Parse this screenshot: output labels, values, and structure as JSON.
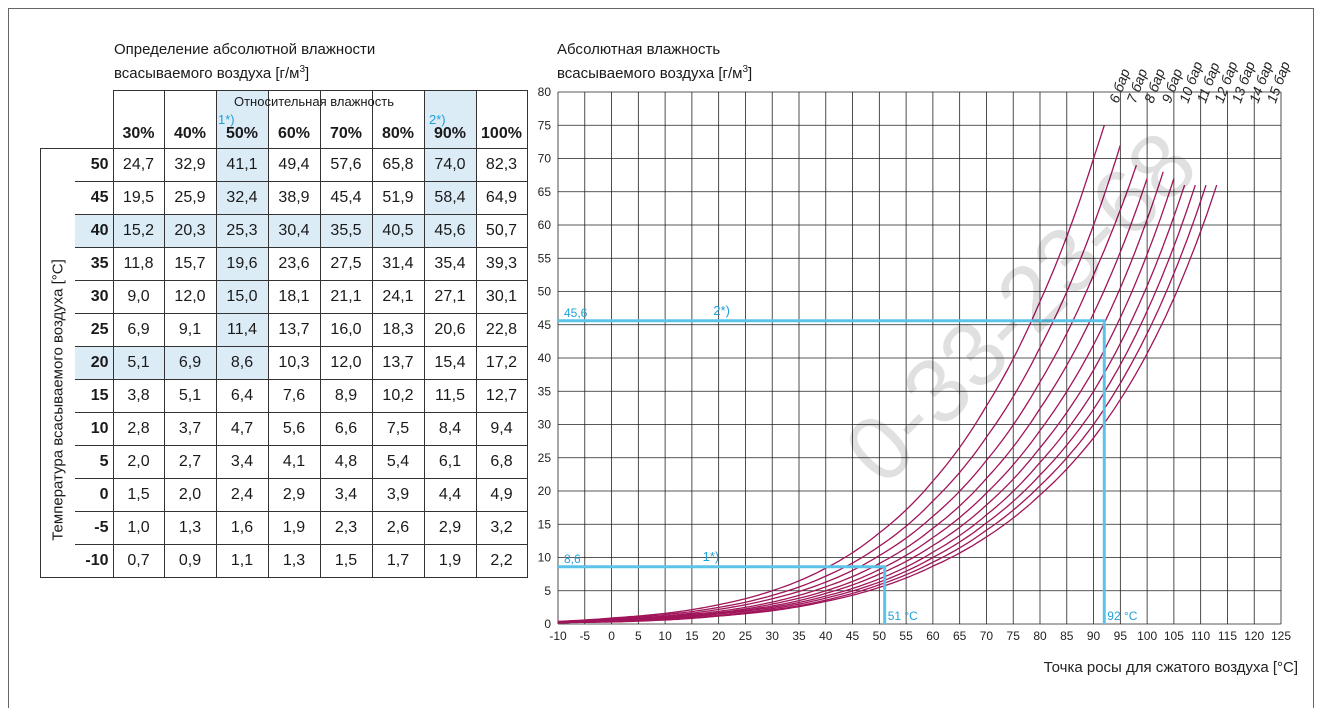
{
  "table": {
    "title_line1": "Определение абсолютной влажности",
    "title_line2": "всасываемого воздуха [г/м",
    "title_sup": "3",
    "title_close": "]",
    "header_label": "Относительная влажность",
    "row_axis_label": "Температура всасываемого воздуха [°C]",
    "marker_1": "1*)",
    "marker_2": "2*)",
    "columns": [
      "30%",
      "40%",
      "50%",
      "60%",
      "70%",
      "80%",
      "90%",
      "100%"
    ],
    "rows": [
      {
        "t": "50",
        "v": [
          "24,7",
          "32,9",
          "41,1",
          "49,4",
          "57,6",
          "65,8",
          "74,0",
          "82,3"
        ]
      },
      {
        "t": "45",
        "v": [
          "19,5",
          "25,9",
          "32,4",
          "38,9",
          "45,4",
          "51,9",
          "58,4",
          "64,9"
        ]
      },
      {
        "t": "40",
        "v": [
          "15,2",
          "20,3",
          "25,3",
          "30,4",
          "35,5",
          "40,5",
          "45,6",
          "50,7"
        ]
      },
      {
        "t": "35",
        "v": [
          "11,8",
          "15,7",
          "19,6",
          "23,6",
          "27,5",
          "31,4",
          "35,4",
          "39,3"
        ]
      },
      {
        "t": "30",
        "v": [
          "9,0",
          "12,0",
          "15,0",
          "18,1",
          "21,1",
          "24,1",
          "27,1",
          "30,1"
        ]
      },
      {
        "t": "25",
        "v": [
          "6,9",
          "9,1",
          "11,4",
          "13,7",
          "16,0",
          "18,3",
          "20,6",
          "22,8"
        ]
      },
      {
        "t": "20",
        "v": [
          "5,1",
          "6,9",
          "8,6",
          "10,3",
          "12,0",
          "13,7",
          "15,4",
          "17,2"
        ]
      },
      {
        "t": "15",
        "v": [
          "3,8",
          "5,1",
          "6,4",
          "7,6",
          "8,9",
          "10,2",
          "11,5",
          "12,7"
        ]
      },
      {
        "t": "10",
        "v": [
          "2,8",
          "3,7",
          "4,7",
          "5,6",
          "6,6",
          "7,5",
          "8,4",
          "9,4"
        ]
      },
      {
        "t": "5",
        "v": [
          "2,0",
          "2,7",
          "3,4",
          "4,1",
          "4,8",
          "5,4",
          "6,1",
          "6,8"
        ]
      },
      {
        "t": "0",
        "v": [
          "1,5",
          "2,0",
          "2,4",
          "2,9",
          "3,4",
          "3,9",
          "4,4",
          "4,9"
        ]
      },
      {
        "t": "-5",
        "v": [
          "1,0",
          "1,3",
          "1,6",
          "1,9",
          "2,3",
          "2,6",
          "2,9",
          "3,2"
        ]
      },
      {
        "t": "-10",
        "v": [
          "0,7",
          "0,9",
          "1,1",
          "1,3",
          "1,5",
          "1,7",
          "1,9",
          "2,2"
        ]
      }
    ],
    "highlight_color": "#dcecf7"
  },
  "chart_data": {
    "type": "line",
    "title_line1": "Абсолютная влажность",
    "title_line2": "всасываемого воздуха [г/м",
    "title_sup": "3",
    "title_close": "]",
    "xlabel": "Точка росы для сжатого воздуха [°C]",
    "ylabel": "",
    "xlim": [
      -10,
      125
    ],
    "ylim": [
      0,
      80
    ],
    "xticks": [
      "-10",
      "-5",
      "0",
      "5",
      "10",
      "15",
      "20",
      "25",
      "30",
      "35",
      "40",
      "45",
      "50",
      "55",
      "60",
      "65",
      "70",
      "75",
      "80",
      "85",
      "90",
      "95",
      "100",
      "105",
      "110",
      "115",
      "120",
      "125"
    ],
    "yticks": [
      "0",
      "5",
      "10",
      "15",
      "20",
      "25",
      "30",
      "35",
      "40",
      "45",
      "50",
      "55",
      "60",
      "65",
      "70",
      "75",
      "80"
    ],
    "grid": true,
    "curve_color": "#a0145a",
    "annotation_color": "#5bc3e8",
    "series": [
      {
        "name": "6 бар",
        "x": [
          -10,
          0,
          10,
          20,
          30,
          40,
          50,
          60,
          70,
          80,
          90,
          92
        ],
        "y": [
          0.4,
          0.9,
          1.6,
          2.9,
          5.0,
          8.4,
          13.7,
          21.5,
          32.8,
          48.5,
          70.0,
          75.0
        ]
      },
      {
        "name": "7 бар",
        "x": [
          -10,
          0,
          10,
          20,
          30,
          40,
          50,
          60,
          70,
          80,
          90,
          95
        ],
        "y": [
          0.3,
          0.8,
          1.4,
          2.5,
          4.3,
          7.2,
          11.7,
          18.5,
          28.1,
          41.6,
          60.0,
          72.0
        ]
      },
      {
        "name": "8 бар",
        "x": [
          -10,
          0,
          10,
          20,
          30,
          40,
          50,
          60,
          70,
          80,
          90,
          98
        ],
        "y": [
          0.3,
          0.7,
          1.2,
          2.2,
          3.8,
          6.3,
          10.3,
          16.2,
          24.6,
          36.4,
          52.5,
          69.0
        ]
      },
      {
        "name": "9 бар",
        "x": [
          -10,
          0,
          10,
          20,
          30,
          40,
          50,
          60,
          70,
          80,
          90,
          100
        ],
        "y": [
          0.3,
          0.6,
          1.1,
          1.9,
          3.3,
          5.6,
          9.1,
          14.4,
          21.9,
          32.4,
          46.7,
          67.0
        ]
      },
      {
        "name": "10 бар",
        "x": [
          -10,
          0,
          10,
          20,
          30,
          40,
          50,
          60,
          70,
          80,
          90,
          103
        ],
        "y": [
          0.2,
          0.5,
          1.0,
          1.7,
          3.0,
          5.0,
          8.2,
          13.0,
          19.7,
          29.1,
          42.0,
          68.0
        ]
      },
      {
        "name": "11 бар",
        "x": [
          -10,
          0,
          10,
          20,
          30,
          40,
          50,
          60,
          70,
          80,
          90,
          105
        ],
        "y": [
          0.2,
          0.5,
          0.9,
          1.6,
          2.7,
          4.6,
          7.5,
          11.8,
          17.9,
          26.5,
          38.2,
          67.0
        ]
      },
      {
        "name": "12 бар",
        "x": [
          -10,
          0,
          10,
          20,
          30,
          40,
          50,
          60,
          70,
          80,
          90,
          107
        ],
        "y": [
          0.2,
          0.4,
          0.8,
          1.5,
          2.5,
          4.2,
          6.8,
          10.8,
          16.4,
          24.3,
          35.0,
          66.0
        ]
      },
      {
        "name": "13 бар",
        "x": [
          -10,
          0,
          10,
          20,
          30,
          40,
          50,
          60,
          70,
          80,
          90,
          109
        ],
        "y": [
          0.2,
          0.4,
          0.7,
          1.3,
          2.3,
          3.9,
          6.3,
          10.0,
          15.2,
          22.4,
          32.3,
          66.0
        ]
      },
      {
        "name": "14 бар",
        "x": [
          -10,
          0,
          10,
          20,
          30,
          40,
          50,
          60,
          70,
          80,
          90,
          111
        ],
        "y": [
          0.2,
          0.4,
          0.7,
          1.2,
          2.1,
          3.6,
          5.9,
          9.3,
          14.1,
          20.8,
          30.0,
          66.0
        ]
      },
      {
        "name": "15 бар",
        "x": [
          -10,
          0,
          10,
          20,
          30,
          40,
          50,
          60,
          70,
          80,
          90,
          113
        ],
        "y": [
          0.2,
          0.3,
          0.6,
          1.2,
          2.0,
          3.4,
          5.5,
          8.7,
          13.1,
          19.4,
          28.0,
          66.0
        ]
      }
    ],
    "annotations": [
      {
        "id": "1",
        "label": "1*)",
        "y_value": 8.6,
        "y_label": "8,6",
        "x_value": 51,
        "x_label": "51 °C"
      },
      {
        "id": "2",
        "label": "2*)",
        "y_value": 45.6,
        "y_label": "45,6",
        "x_value": 92,
        "x_label": "92 °C"
      }
    ]
  },
  "watermark": "0-33-23-68"
}
